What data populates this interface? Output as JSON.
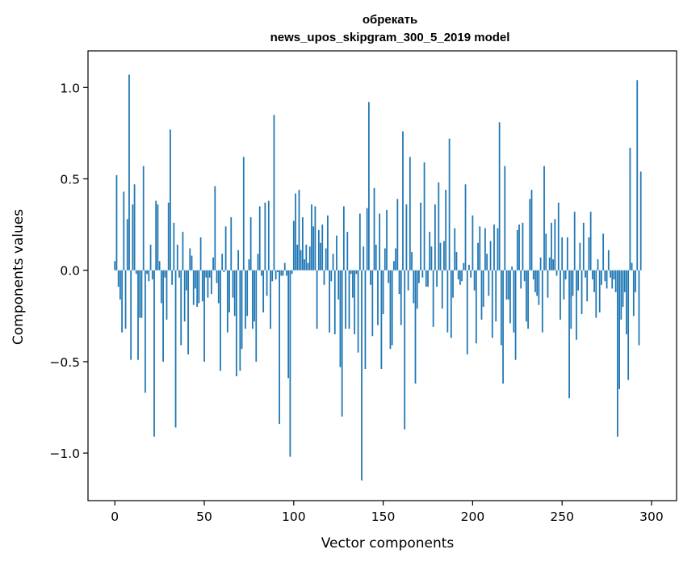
{
  "chart_data": {
    "type": "bar",
    "title": [
      "обрекать",
      "news_upos_skipgram_300_5_2019 model"
    ],
    "xlabel": "Vector components",
    "ylabel": "Components values",
    "xlim": [
      -15,
      314
    ],
    "ylim": [
      -1.26,
      1.2
    ],
    "xticks": [
      0,
      50,
      100,
      150,
      200,
      250,
      300
    ],
    "xtick_labels": [
      "0",
      "50",
      "100",
      "150",
      "200",
      "250",
      "300"
    ],
    "yticks": [
      -1.0,
      -0.5,
      0.0,
      0.5,
      1.0
    ],
    "ytick_labels": [
      "−1.0",
      "−0.5",
      "0.0",
      "0.5",
      "1.0"
    ],
    "grid": false,
    "bar_color": "#1f77b4",
    "series": [
      {
        "values": [
          0.05,
          0.52,
          -0.09,
          -0.16,
          -0.34,
          0.43,
          -0.32,
          0.28,
          1.07,
          -0.49,
          0.36,
          0.47,
          -0.02,
          -0.49,
          -0.26,
          -0.26,
          0.57,
          -0.67,
          -0.02,
          -0.06,
          0.14,
          -0.05,
          -0.91,
          0.38,
          0.36,
          0.05,
          -0.18,
          -0.5,
          -0.04,
          -0.27,
          0.37,
          0.77,
          -0.08,
          0.26,
          -0.86,
          0.14,
          -0.04,
          -0.41,
          0.21,
          -0.28,
          -0.11,
          -0.46,
          0.12,
          0.08,
          -0.19,
          -0.1,
          -0.2,
          -0.18,
          0.18,
          -0.17,
          -0.5,
          -0.04,
          -0.15,
          -0.04,
          -0.13,
          0.07,
          0.46,
          -0.07,
          -0.18,
          -0.55,
          0.09,
          -0.01,
          0.24,
          -0.34,
          -0.23,
          0.29,
          -0.15,
          -0.25,
          -0.58,
          0.11,
          -0.55,
          -0.43,
          0.62,
          -0.32,
          -0.25,
          0.06,
          0.29,
          -0.32,
          -0.28,
          -0.5,
          0.09,
          0.35,
          -0.03,
          -0.23,
          0.37,
          -0.14,
          0.38,
          -0.32,
          -0.06,
          0.85,
          -0.05,
          -0.01,
          -0.84,
          -0.03,
          -0.03,
          0.04,
          -0.03,
          -0.59,
          -1.02,
          -0.02,
          0.27,
          0.42,
          0.14,
          0.44,
          0.11,
          0.29,
          0.06,
          0.14,
          0.04,
          0.13,
          0.36,
          0.24,
          0.35,
          -0.32,
          0.22,
          0.15,
          0.25,
          -0.08,
          0.12,
          0.3,
          -0.34,
          -0.06,
          0.09,
          -0.35,
          0.19,
          -0.16,
          -0.53,
          -0.8,
          0.35,
          -0.32,
          0.21,
          -0.32,
          -0.02,
          -0.15,
          -0.35,
          -0.02,
          -0.45,
          0.31,
          -1.15,
          0.13,
          -0.54,
          0.34,
          0.92,
          -0.08,
          -0.36,
          0.45,
          0.14,
          -0.3,
          0.31,
          -0.54,
          -0.24,
          0.12,
          0.33,
          -0.07,
          -0.43,
          -0.41,
          0.05,
          0.12,
          0.39,
          -0.13,
          -0.3,
          0.76,
          -0.87,
          0.36,
          -0.11,
          0.62,
          0.1,
          -0.18,
          -0.62,
          -0.21,
          -0.07,
          0.37,
          -0.04,
          0.59,
          -0.09,
          -0.09,
          0.21,
          0.13,
          -0.31,
          0.36,
          -0.09,
          0.48,
          0.15,
          -0.21,
          0.16,
          0.44,
          -0.34,
          0.72,
          -0.37,
          -0.15,
          0.23,
          0.1,
          -0.05,
          -0.08,
          -0.06,
          0.04,
          0.47,
          -0.46,
          0.03,
          -0.04,
          0.3,
          -0.11,
          -0.4,
          0.15,
          0.24,
          -0.27,
          -0.2,
          0.23,
          0.09,
          -0.14,
          0.16,
          -0.37,
          0.25,
          -0.28,
          0.23,
          0.81,
          -0.41,
          -0.62,
          0.57,
          -0.16,
          -0.16,
          -0.29,
          0.02,
          -0.34,
          -0.49,
          0.22,
          0.25,
          -0.1,
          0.26,
          -0.06,
          -0.28,
          -0.32,
          0.39,
          0.44,
          -0.05,
          -0.12,
          -0.14,
          -0.19,
          0.07,
          -0.34,
          0.57,
          0.2,
          -0.15,
          0.07,
          0.26,
          0.06,
          0.28,
          -0.03,
          0.37,
          -0.27,
          0.18,
          -0.16,
          -0.05,
          0.18,
          -0.7,
          -0.32,
          -0.14,
          0.32,
          -0.38,
          -0.11,
          0.15,
          -0.24,
          0.26,
          -0.04,
          -0.17,
          0.18,
          0.32,
          -0.05,
          -0.12,
          -0.26,
          0.06,
          -0.23,
          -0.08,
          0.2,
          -0.06,
          -0.1,
          0.11,
          -0.04,
          -0.1,
          -0.05,
          -0.12,
          -0.91,
          -0.65,
          -0.27,
          -0.2,
          -0.12,
          -0.35,
          -0.6,
          0.67,
          0.04,
          -0.25,
          -0.12,
          1.04,
          -0.41,
          0.54
        ]
      }
    ]
  }
}
